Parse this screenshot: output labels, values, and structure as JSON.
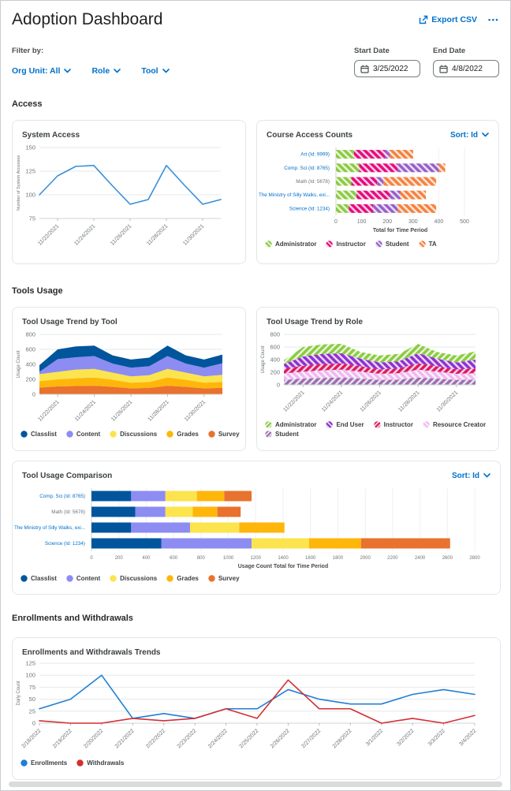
{
  "header": {
    "title": "Adoption Dashboard",
    "export_csv": "Export CSV",
    "more": "•••"
  },
  "filters": {
    "label": "Filter by:",
    "org_unit": "Org Unit: All",
    "role": "Role",
    "tool": "Tool",
    "start_date_label": "Start Date",
    "start_date_value": "3/25/2022",
    "end_date_label": "End Date",
    "end_date_value": "4/8/2022"
  },
  "sections": {
    "access": "Access",
    "tools_usage": "Tools Usage",
    "enrollments": "Enrollments and Withdrawals"
  },
  "colors": {
    "accent_blue": "#0070C9",
    "line_blue": "#3A8FD8",
    "enroll_blue": "#1F7FD4",
    "withdraw_red": "#D22F34"
  },
  "chart_data": [
    {
      "id": "system_access",
      "type": "line",
      "title": "System Access",
      "ylabel": "Number of System Accesses",
      "ylim": [
        75,
        150
      ],
      "yticks": [
        75,
        100,
        125,
        150
      ],
      "n_points": 11,
      "xtick_indices": [
        1,
        3,
        5,
        7,
        9
      ],
      "xtick_labels": [
        "11/22/2021",
        "11/24/2021",
        "11/26/2021",
        "11/28/2021",
        "11/30/2021"
      ],
      "grid": "horizontal",
      "legend": false,
      "series": [
        {
          "name": "System Accesses",
          "color": "#3A8FD8",
          "values": [
            100,
            120,
            130,
            131,
            110,
            90,
            95,
            131,
            110,
            90,
            95
          ]
        }
      ]
    },
    {
      "id": "course_access",
      "type": "hbar",
      "title": "Course Access Counts",
      "sort_label": "Sort: Id",
      "hatch": true,
      "xlim": [
        0,
        500
      ],
      "xticks": [
        0,
        100,
        200,
        300,
        400,
        500
      ],
      "xlabel": "Total for Time Period",
      "series": [
        {
          "name": "Administrator",
          "color": "#8CCB43"
        },
        {
          "name": "Instructor",
          "color": "#E40D7E"
        },
        {
          "name": "Student",
          "color": "#9760C8"
        },
        {
          "name": "TA",
          "color": "#F5823F"
        }
      ],
      "categories": [
        {
          "label": "Art (Id: 9999)",
          "link": true,
          "values": [
            70,
            120,
            20,
            90
          ]
        },
        {
          "label": "Comp. Sci (Id: 8765)",
          "link": true,
          "values": [
            90,
            150,
            160,
            25
          ]
        },
        {
          "label": "Math (Id: 5678)",
          "link": false,
          "values": [
            60,
            100,
            25,
            205
          ]
        },
        {
          "label": "The Ministry of Silly Walks, exi...",
          "link": true,
          "values": [
            80,
            130,
            40,
            100
          ]
        },
        {
          "label": "Science (Id: 1234)",
          "link": true,
          "values": [
            50,
            95,
            95,
            150
          ]
        }
      ]
    },
    {
      "id": "tool_trend_tool",
      "type": "stacked_area",
      "title": "Tool Usage Trend by Tool",
      "ylabel": "Usage Count",
      "ylim": [
        0,
        800
      ],
      "yticks": [
        0,
        200,
        400,
        600,
        800
      ],
      "n_points": 11,
      "hatch": false,
      "xtick_indices": [
        1,
        3,
        5,
        7,
        9
      ],
      "xtick_labels": [
        "11/22/2021",
        "11/24/2021",
        "11/26/2021",
        "11/28/2021",
        "11/30/2021"
      ],
      "series": [
        {
          "name": "Classlist",
          "color": "#00559C",
          "values": [
            90,
            130,
            145,
            140,
            110,
            110,
            115,
            140,
            110,
            110,
            115
          ]
        },
        {
          "name": "Content",
          "color": "#8C8CF2",
          "values": [
            30,
            170,
            165,
            170,
            120,
            115,
            120,
            170,
            120,
            115,
            155
          ]
        },
        {
          "name": "Discussions",
          "color": "#FBE44D",
          "values": [
            95,
            100,
            115,
            115,
            95,
            85,
            90,
            115,
            95,
            85,
            95
          ]
        },
        {
          "name": "Grades",
          "color": "#FFB60A",
          "values": [
            85,
            95,
            105,
            110,
            95,
            75,
            80,
            110,
            95,
            75,
            80
          ]
        },
        {
          "name": "Survey",
          "color": "#E8722E",
          "values": [
            90,
            105,
            110,
            115,
            100,
            80,
            85,
            115,
            100,
            80,
            85
          ]
        }
      ]
    },
    {
      "id": "tool_trend_role",
      "type": "stacked_area",
      "title": "Tool Usage Trend by Role",
      "ylabel": "Usage Count",
      "ylim": [
        0,
        800
      ],
      "yticks": [
        0,
        200,
        400,
        600,
        800
      ],
      "n_points": 11,
      "hatch": true,
      "hatch_alt": true,
      "xtick_indices": [
        1,
        3,
        5,
        7,
        9
      ],
      "xtick_labels": [
        "11/22/2021",
        "11/24/2021",
        "11/26/2021",
        "11/28/2021",
        "11/30/2021"
      ],
      "series": [
        {
          "name": "Administrator",
          "color": "#8CCB43",
          "values": [
            60,
            150,
            150,
            150,
            105,
            110,
            115,
            150,
            105,
            110,
            130
          ]
        },
        {
          "name": "End User",
          "color": "#9031D0",
          "values": [
            70,
            150,
            160,
            160,
            120,
            110,
            115,
            160,
            120,
            110,
            140
          ]
        },
        {
          "name": "Instructor",
          "color": "#DC1A62",
          "values": [
            80,
            90,
            100,
            100,
            85,
            70,
            75,
            100,
            85,
            70,
            75
          ]
        },
        {
          "name": "Resource Creator",
          "color": "#EFB9F2",
          "values": [
            100,
            110,
            120,
            125,
            110,
            95,
            100,
            125,
            110,
            95,
            100
          ]
        },
        {
          "name": "Student",
          "color": "#9A71AE",
          "values": [
            80,
            100,
            110,
            115,
            100,
            80,
            85,
            115,
            100,
            80,
            85
          ]
        }
      ]
    },
    {
      "id": "tool_comparison",
      "type": "hbar",
      "title": "Tool Usage Comparison",
      "sort_label": "Sort: Id",
      "hatch": false,
      "xlim": [
        0,
        2800
      ],
      "xticks": [
        0,
        200,
        400,
        600,
        800,
        1000,
        1200,
        1400,
        1600,
        1800,
        2000,
        2200,
        2400,
        2600,
        2800
      ],
      "xlabel": "Usage Count Total for Time Period",
      "series": [
        {
          "name": "Classlist",
          "color": "#00559C"
        },
        {
          "name": "Content",
          "color": "#8C8CF2"
        },
        {
          "name": "Discussions",
          "color": "#FBE44D"
        },
        {
          "name": "Grades",
          "color": "#FFB60A"
        },
        {
          "name": "Survey",
          "color": "#E8722E"
        }
      ],
      "categories": [
        {
          "label": "Comp. Sci (Id: 8765)",
          "link": true,
          "values": [
            290,
            250,
            230,
            200,
            200
          ]
        },
        {
          "label": "Math (Id: 5678)",
          "link": false,
          "values": [
            320,
            220,
            200,
            180,
            170
          ]
        },
        {
          "label": "The Ministry of Silly Walks, exi...",
          "link": true,
          "values": [
            290,
            430,
            360,
            330,
            0
          ]
        },
        {
          "label": "Science (Id: 1234)",
          "link": true,
          "values": [
            510,
            660,
            420,
            380,
            650
          ]
        }
      ]
    },
    {
      "id": "enroll_withdraw",
      "type": "line",
      "title": "Enrollments and Withdrawals Trends",
      "ylabel": "Daily Count",
      "ylim": [
        0,
        125
      ],
      "yticks": [
        0,
        25,
        50,
        75,
        100,
        125
      ],
      "n_points": 15,
      "legend": true,
      "xtick_indices": [
        0,
        1,
        2,
        3,
        4,
        5,
        6,
        7,
        8,
        9,
        10,
        11,
        12,
        13,
        14
      ],
      "xtick_labels": [
        "2/18/2022",
        "2/19/2022",
        "2/20/2022",
        "2/21/2022",
        "2/22/2022",
        "2/23/2022",
        "2/24/2022",
        "2/25/2022",
        "2/26/2022",
        "2/27/2022",
        "2/28/2022",
        "3/1/2022",
        "3/2/2022",
        "3/3/2022",
        "3/4/2022"
      ],
      "series": [
        {
          "name": "Enrollments",
          "color": "#1F7FD4",
          "values": [
            30,
            50,
            100,
            10,
            20,
            10,
            30,
            30,
            70,
            50,
            40,
            40,
            60,
            70,
            60
          ]
        },
        {
          "name": "Withdrawals",
          "color": "#D22F34",
          "values": [
            5,
            0,
            0,
            10,
            5,
            10,
            30,
            10,
            90,
            30,
            30,
            0,
            10,
            0,
            16
          ]
        }
      ]
    }
  ]
}
